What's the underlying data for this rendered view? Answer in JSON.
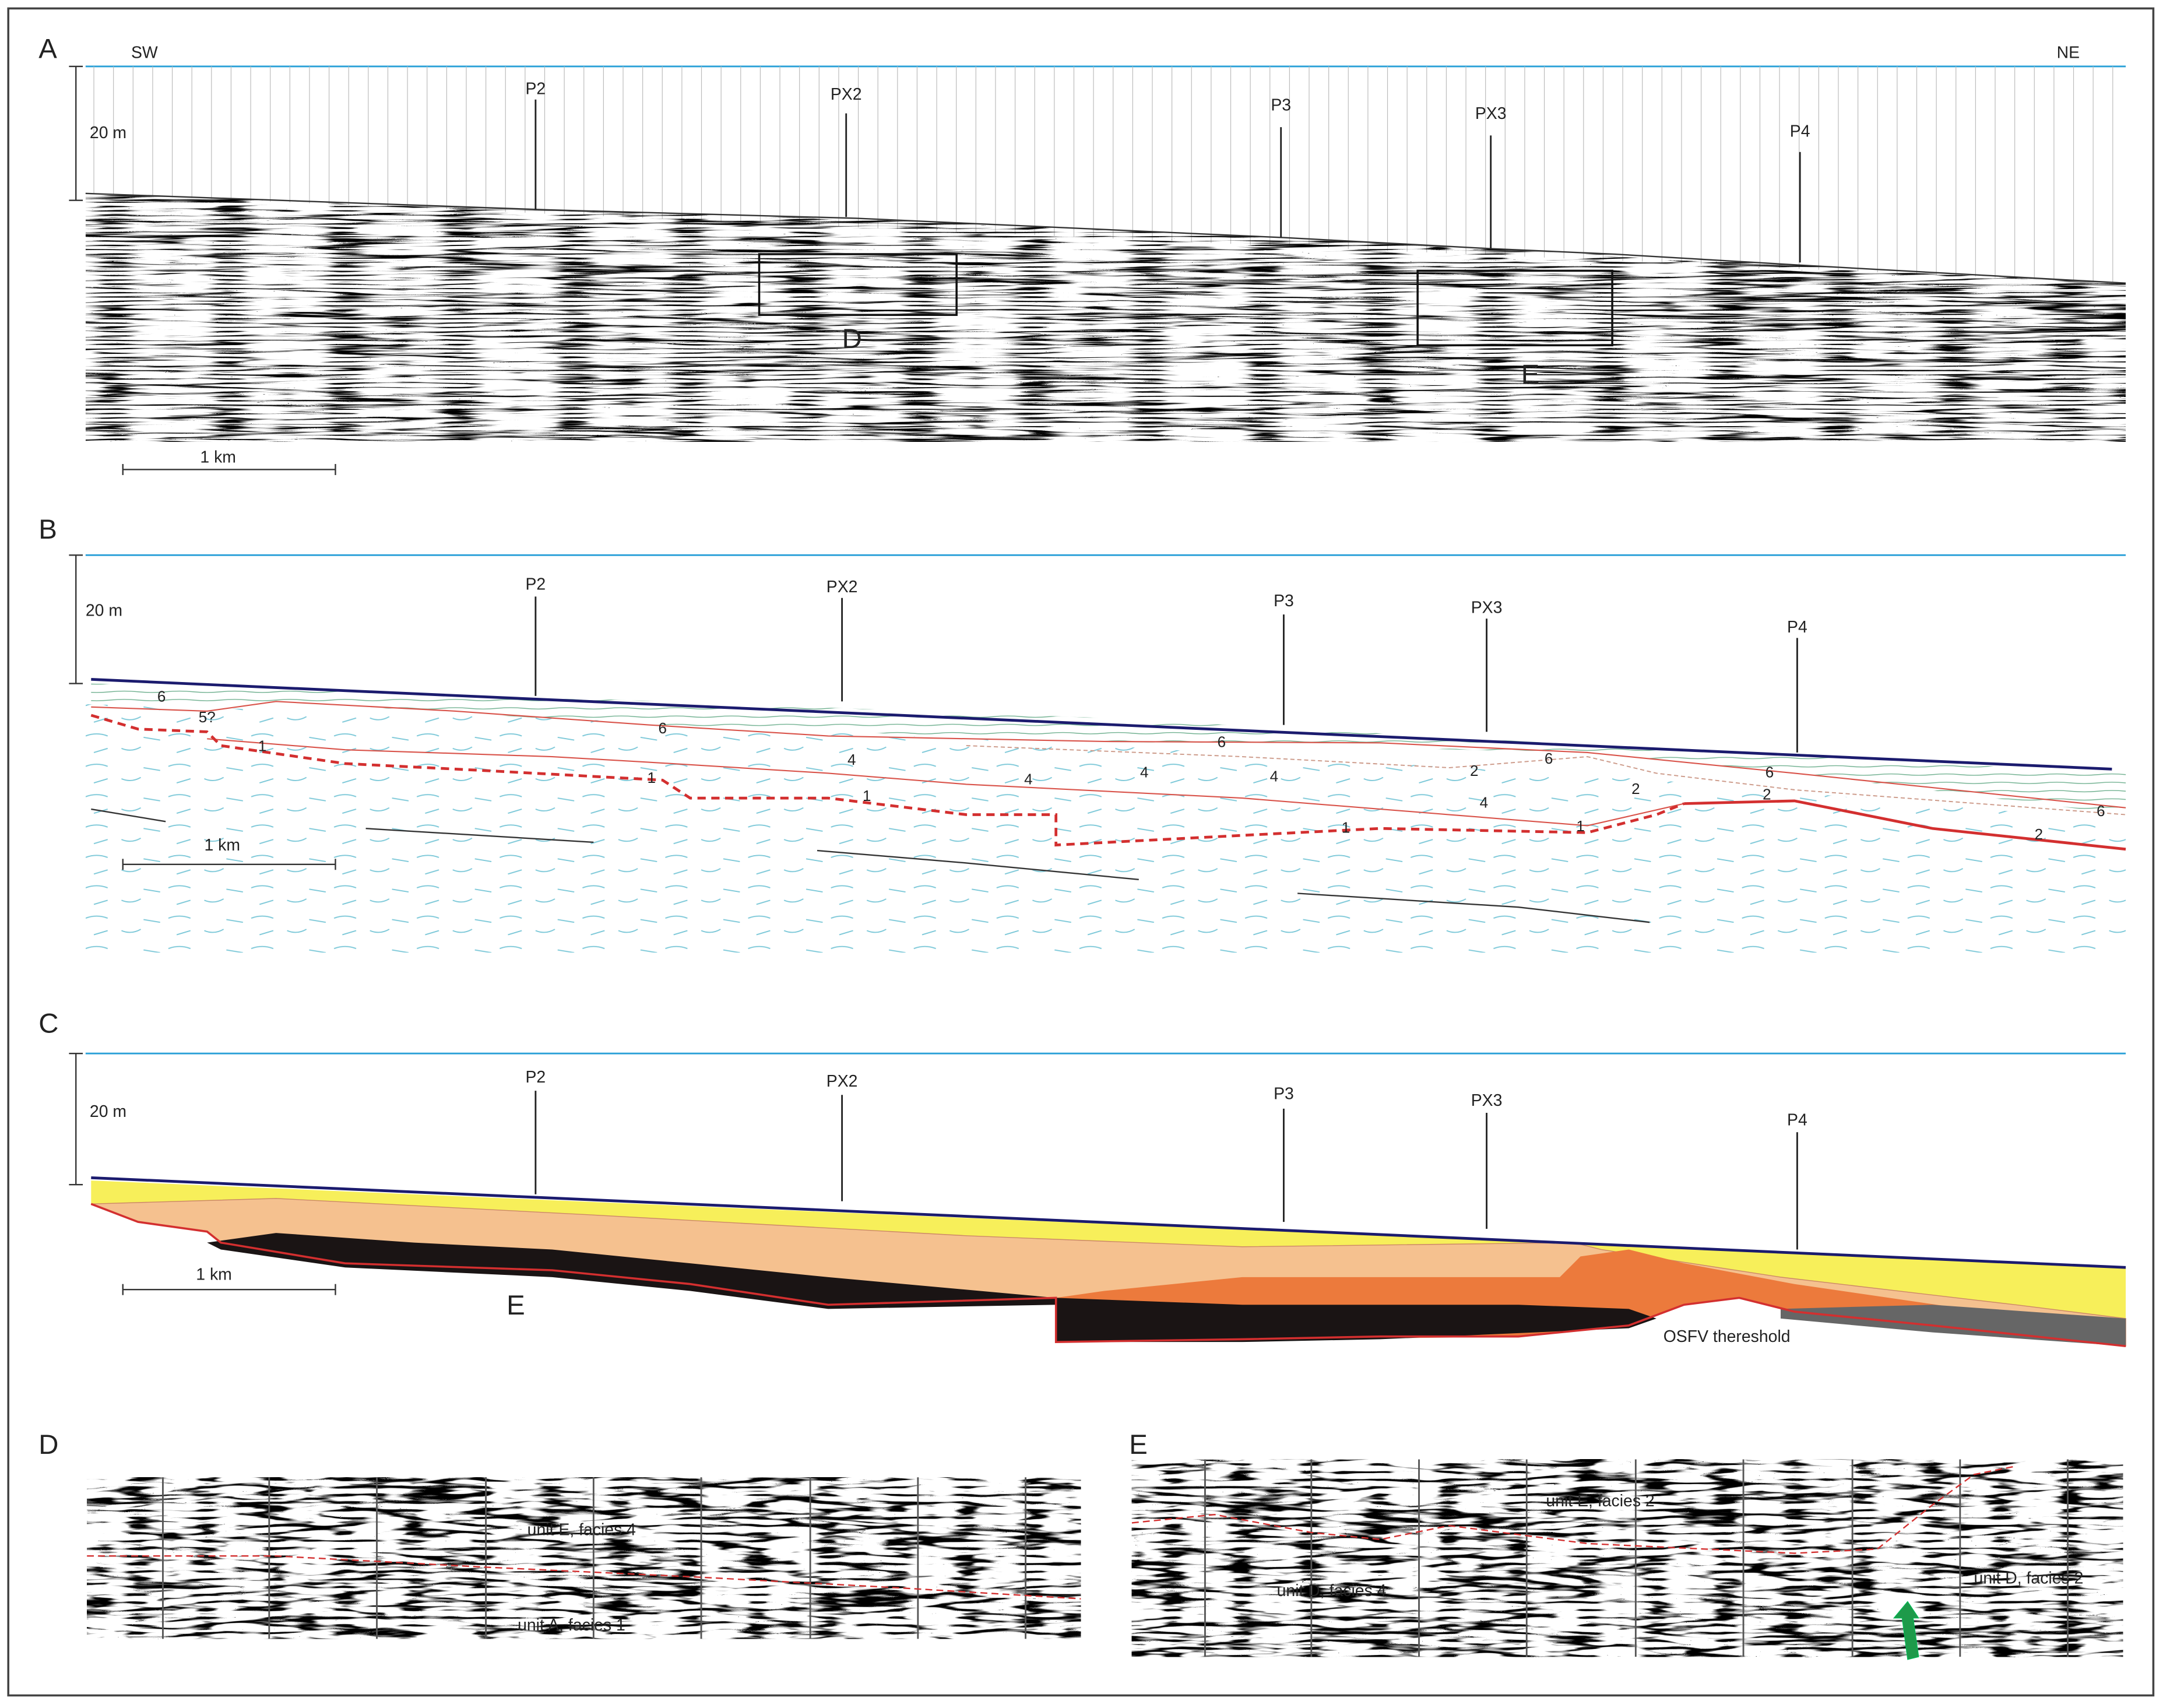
{
  "panels": [
    {
      "label": "A",
      "sw": "SW",
      "ne": "NE",
      "vertical_scale": "20 m",
      "horizontal_scale": "1 km",
      "wells": [
        "P2",
        "PX2",
        "P3",
        "PX3",
        "P4"
      ],
      "boxes": [
        "D",
        "E"
      ]
    },
    {
      "label": "B",
      "vertical_scale": "20 m",
      "horizontal_scale": "1 km",
      "wells": [
        "P2",
        "PX2",
        "P3",
        "PX3",
        "P4"
      ],
      "units": [
        "6",
        "5?",
        "1",
        "6",
        "4",
        "1",
        "1",
        "4",
        "4",
        "6",
        "4",
        "2",
        "6",
        "4",
        "2",
        "1",
        "1",
        "6",
        "2",
        "6",
        "2"
      ]
    },
    {
      "label": "C",
      "vertical_scale": "20 m",
      "horizontal_scale": "1 km",
      "wells": [
        "P2",
        "PX2",
        "P3",
        "PX3",
        "P4"
      ],
      "annotations": [
        "E",
        "OSFV thereshold"
      ]
    },
    {
      "label": "D",
      "annotations": [
        "unit E, facies 4",
        "unit A, facies 1"
      ]
    },
    {
      "label": "E",
      "annotations": [
        "unit E, facies 2",
        "unit D, facies 4",
        "unit D, facies 2"
      ]
    }
  ]
}
